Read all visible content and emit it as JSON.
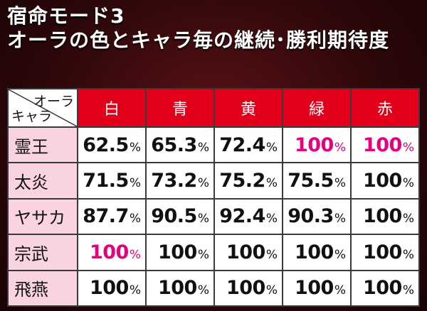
{
  "title": {
    "line1": "宿命モード3",
    "line2": "オーラの色とキャラ毎の継続･勝利期待度"
  },
  "table": {
    "corner": {
      "column_axis": "オーラ",
      "row_axis": "キャラ"
    },
    "columns": [
      "白",
      "青",
      "黄",
      "緑",
      "赤"
    ],
    "percent_sign": "%",
    "highlight_color": "#e5007f",
    "header_color": "#e2001a",
    "row_label_color": "#f9d3e2",
    "rows": [
      {
        "label": "霊王",
        "values": [
          "62.5",
          "65.3",
          "72.4",
          "100",
          "100"
        ],
        "highlight": [
          false,
          false,
          false,
          true,
          true
        ]
      },
      {
        "label": "太炎",
        "values": [
          "71.5",
          "73.2",
          "75.2",
          "75.5",
          "100"
        ],
        "highlight": [
          false,
          false,
          false,
          false,
          false
        ]
      },
      {
        "label": "ヤサカ",
        "values": [
          "87.7",
          "90.5",
          "92.4",
          "90.3",
          "100"
        ],
        "highlight": [
          false,
          false,
          false,
          false,
          false
        ]
      },
      {
        "label": "宗武",
        "values": [
          "100",
          "100",
          "100",
          "100",
          "100"
        ],
        "highlight": [
          true,
          false,
          false,
          false,
          false
        ]
      },
      {
        "label": "飛燕",
        "values": [
          "100",
          "100",
          "100",
          "100",
          "100"
        ],
        "highlight": [
          false,
          false,
          false,
          false,
          false
        ]
      }
    ]
  }
}
